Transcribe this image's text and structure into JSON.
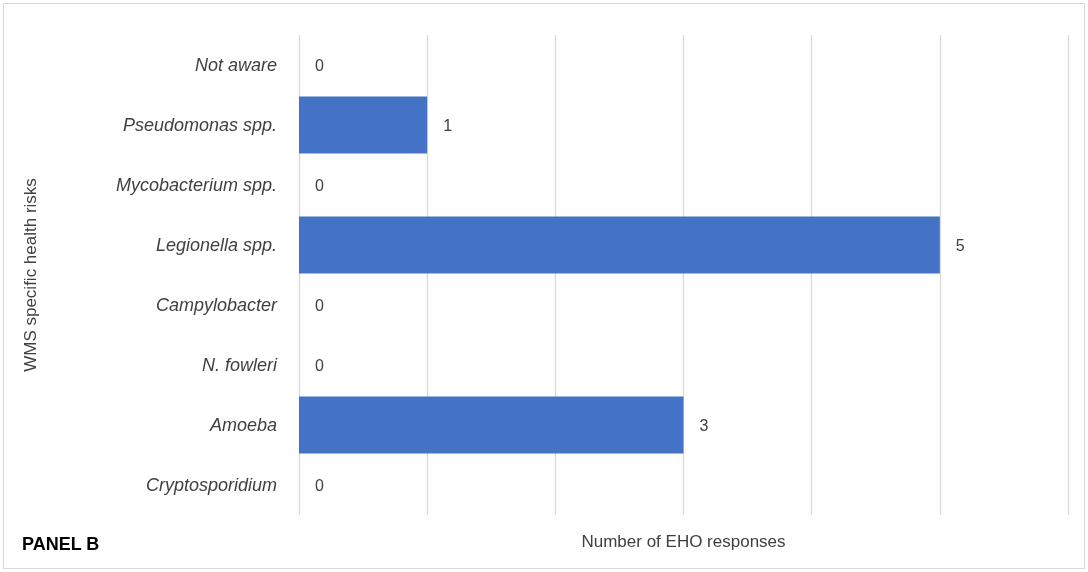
{
  "chart_data": {
    "type": "bar",
    "orientation": "horizontal",
    "ylabel": "WMS specific health risks",
    "xlabel": "Number of EHO responses",
    "categories": [
      "Not aware",
      "Pseudomonas spp.",
      "Mycobacterium spp.",
      "Legionella spp.",
      "Campylobacter",
      "N. fowleri",
      "Amoeba",
      "Cryptosporidium"
    ],
    "values": [
      0,
      1,
      0,
      5,
      0,
      0,
      3,
      0
    ],
    "color": "#4472c4",
    "xlim": [
      0,
      6
    ],
    "xticks": [
      {
        "value": 0,
        "label": null
      },
      {
        "value": 1,
        "label": null
      },
      {
        "value": 2,
        "label": null
      },
      {
        "value": 3,
        "label": null
      },
      {
        "value": 4,
        "label": null
      },
      {
        "value": 5,
        "label": null
      },
      {
        "value": 6,
        "label": null
      }
    ],
    "grid": "x",
    "tick_labels": "y",
    "data_labels": true,
    "annotations": [
      "PANEL B"
    ]
  }
}
